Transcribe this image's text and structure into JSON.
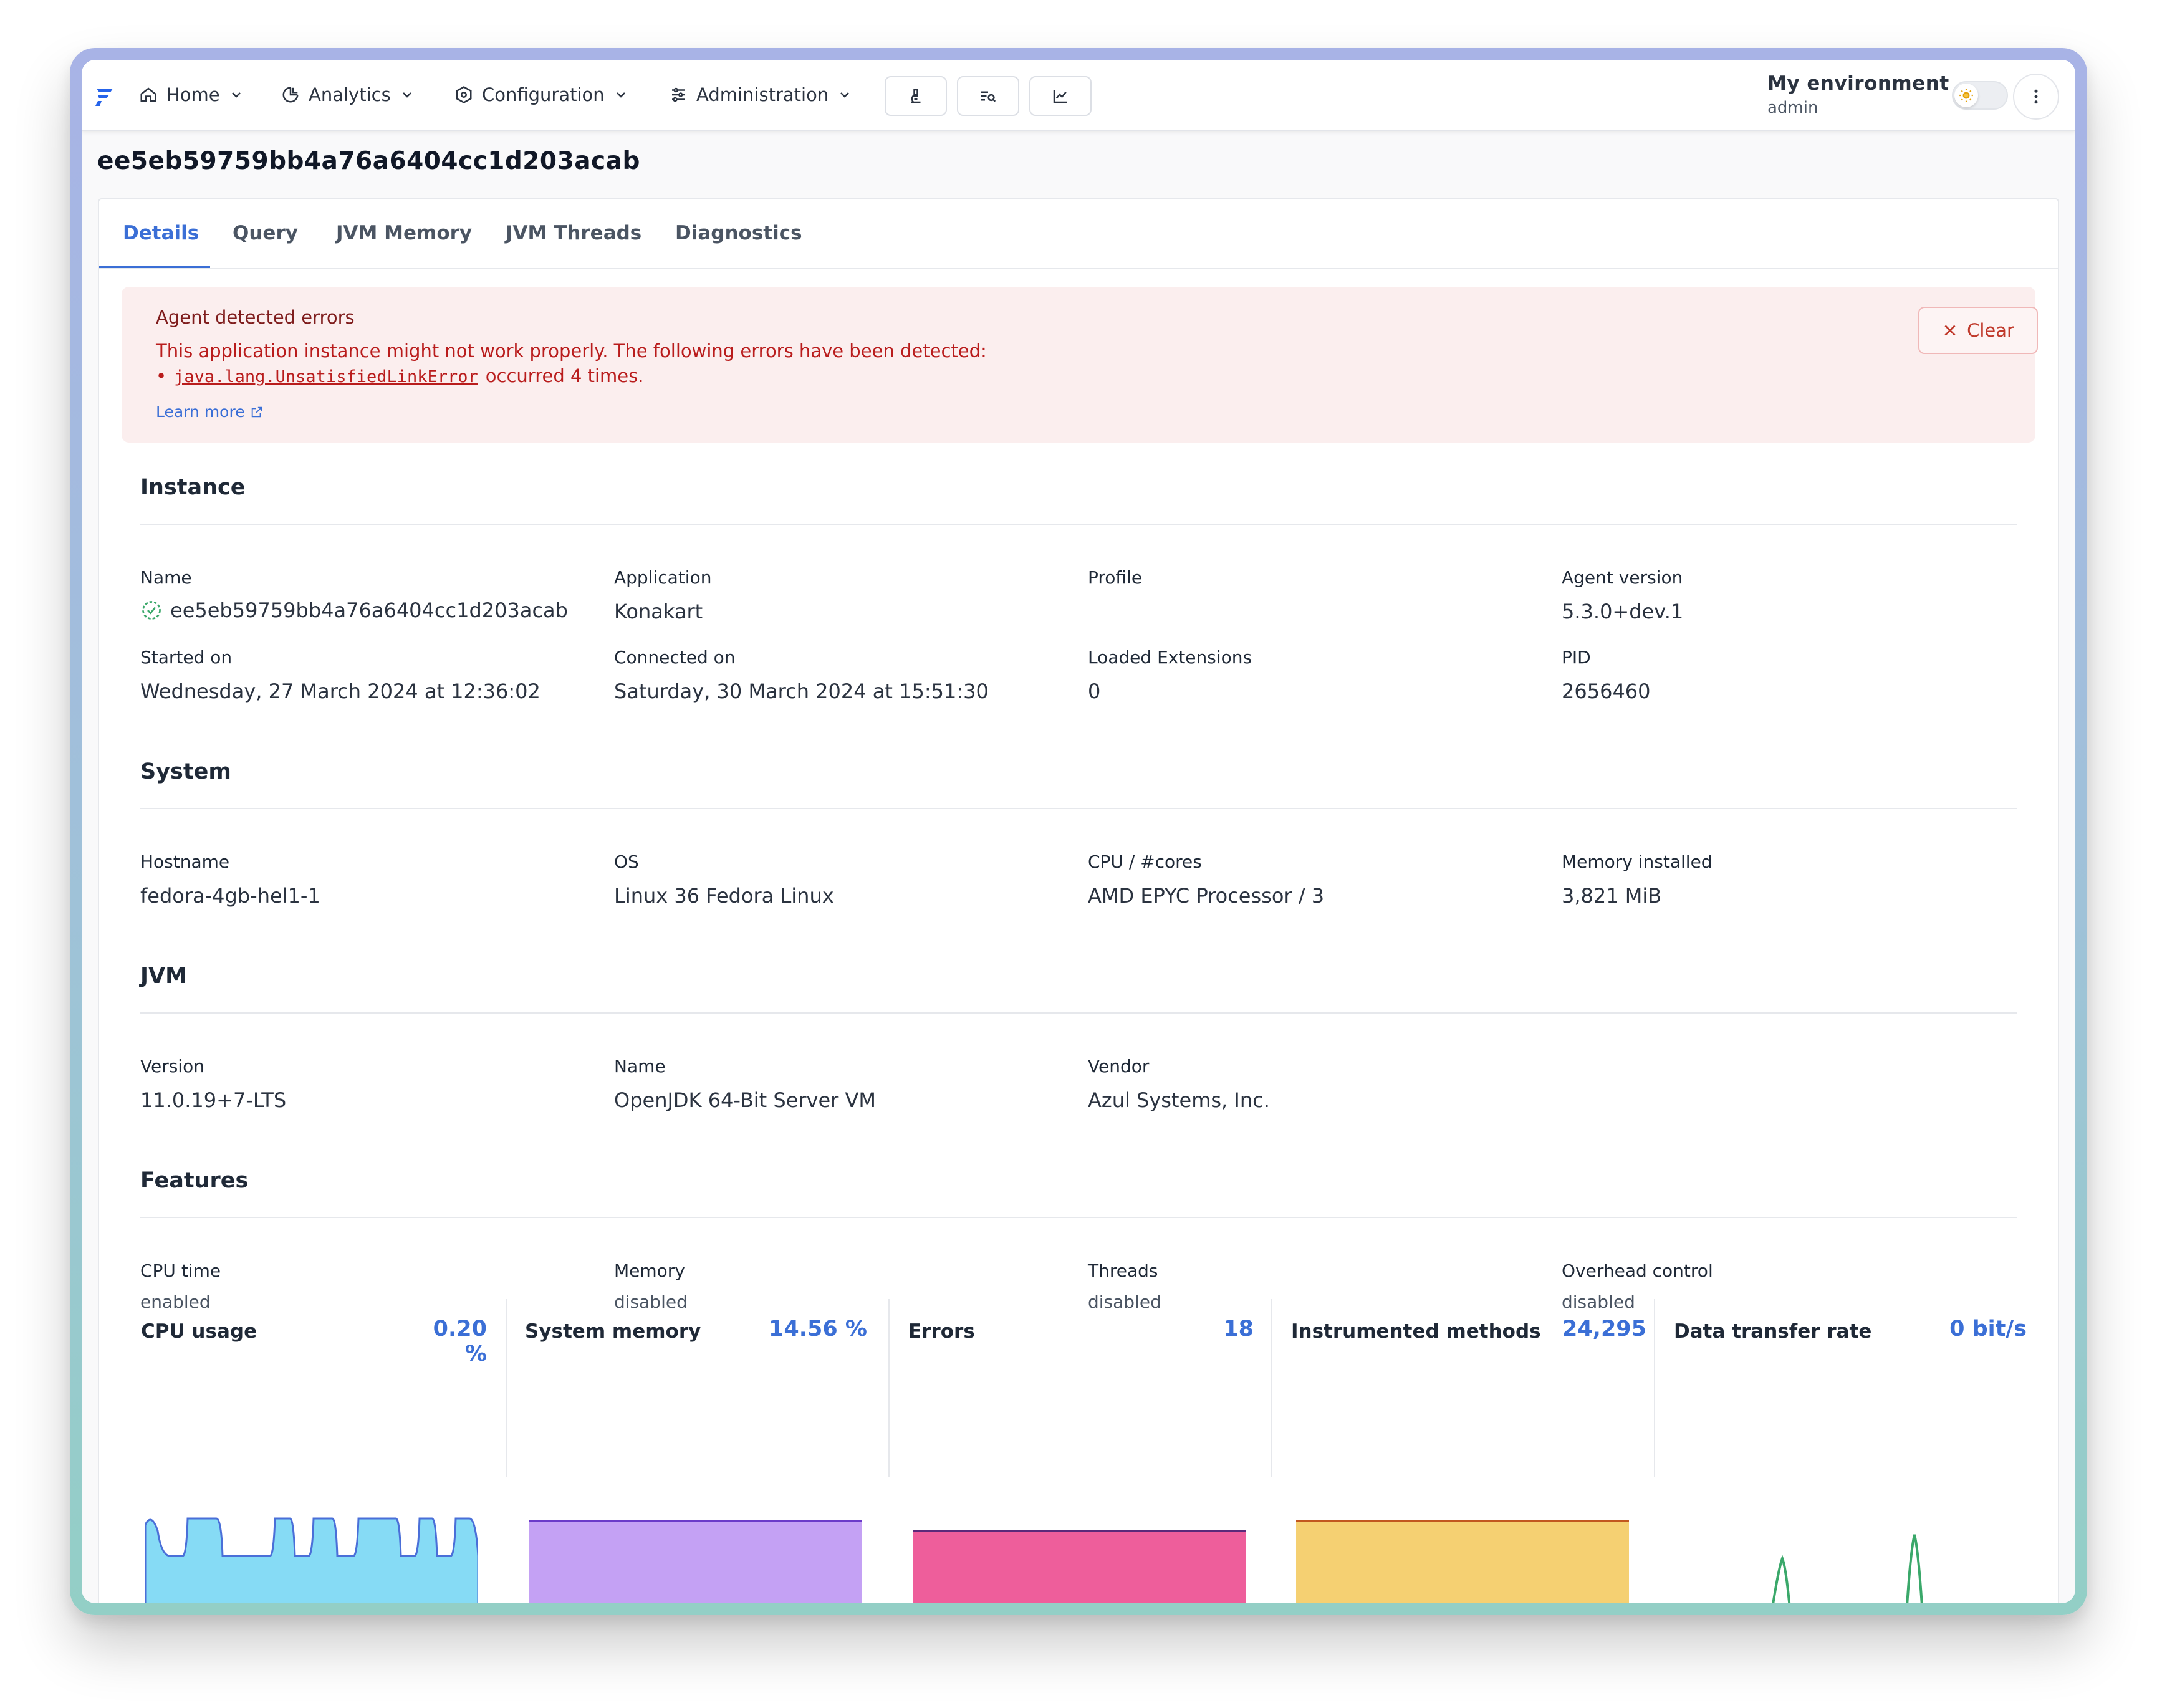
{
  "nav": {
    "home": "Home",
    "analytics": "Analytics",
    "configuration": "Configuration",
    "administration": "Administration"
  },
  "environment": {
    "title": "My environment",
    "user": "admin"
  },
  "page_title": "ee5eb59759bb4a76a6404cc1d203acab",
  "tabs": [
    "Details",
    "Query",
    "JVM Memory",
    "JVM Threads",
    "Diagnostics"
  ],
  "alert": {
    "title": "Agent detected errors",
    "text": "This application instance might not work properly. The following errors have been detected:",
    "error_class": "java.lang.UnsatisfiedLinkError",
    "error_suffix": "occurred 4 times.",
    "learn_more": "Learn more",
    "clear": "Clear"
  },
  "instance": {
    "title": "Instance",
    "name_label": "Name",
    "name_value": "ee5eb59759bb4a76a6404cc1d203acab",
    "application_label": "Application",
    "application_value": "Konakart",
    "profile_label": "Profile",
    "profile_value": "",
    "agent_version_label": "Agent version",
    "agent_version_value": "5.3.0+dev.1",
    "started_label": "Started on",
    "started_value": "Wednesday, 27 March 2024 at 12:36:02",
    "connected_label": "Connected on",
    "connected_value": "Saturday, 30 March 2024 at 15:51:30",
    "extensions_label": "Loaded Extensions",
    "extensions_value": "0",
    "pid_label": "PID",
    "pid_value": "2656460"
  },
  "system": {
    "title": "System",
    "hostname_label": "Hostname",
    "hostname_value": "fedora-4gb-hel1-1",
    "os_label": "OS",
    "os_value": "Linux 36 Fedora Linux",
    "cpu_label": "CPU / #cores",
    "cpu_value": "AMD EPYC Processor / 3",
    "memory_label": "Memory installed",
    "memory_value": "3,821 MiB"
  },
  "jvm": {
    "title": "JVM",
    "version_label": "Version",
    "version_value": "11.0.19+7-LTS",
    "name_label": "Name",
    "name_value": "OpenJDK 64-Bit Server VM",
    "vendor_label": "Vendor",
    "vendor_value": "Azul Systems, Inc."
  },
  "features": {
    "title": "Features",
    "cpu_label": "CPU time",
    "cpu_value": "enabled",
    "memory_label": "Memory",
    "memory_value": "disabled",
    "threads_label": "Threads",
    "threads_value": "disabled",
    "overhead_label": "Overhead control",
    "overhead_value": "disabled"
  },
  "metrics": [
    {
      "label": "CPU usage",
      "value": "0.20 %",
      "color": "#86dbf5",
      "line": "#4a6fd8"
    },
    {
      "label": "System memory",
      "value": "14.56 %",
      "color": "#c4a1f4",
      "line": "#6b3bc9"
    },
    {
      "label": "Errors",
      "value": "18",
      "color": "#ee5e9b",
      "line": "#5b2a7a"
    },
    {
      "label": "Instrumented methods",
      "value": "24,295",
      "color": "#f5d072",
      "line": "#c2571f"
    },
    {
      "label": "Data transfer rate",
      "value": "0 bit/s",
      "color": "#ffffff",
      "line": "#3aa86a"
    }
  ]
}
